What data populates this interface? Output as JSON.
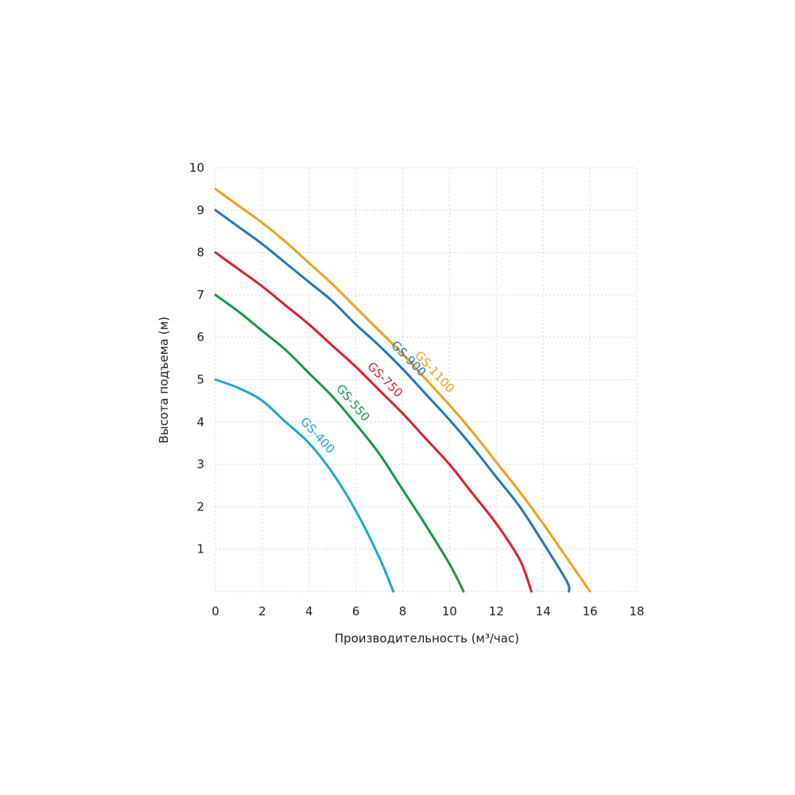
{
  "chart_data": {
    "type": "line",
    "xlabel": "Производительность (м³/час)",
    "ylabel": "Высота подъема (м)",
    "xlim": [
      0,
      18
    ],
    "ylim": [
      0,
      10
    ],
    "x_ticks": [
      "0",
      "2",
      "4",
      "6",
      "8",
      "10",
      "12",
      "14",
      "16",
      "18"
    ],
    "y_ticks": [
      "1",
      "2",
      "3",
      "4",
      "5",
      "6",
      "7",
      "8",
      "9",
      "10"
    ],
    "grid": true,
    "series": [
      {
        "name": "GS-400",
        "color": "#1aa8e0",
        "points": [
          [
            0,
            5.0
          ],
          [
            1,
            4.8
          ],
          [
            2,
            4.5
          ],
          [
            3,
            4.0
          ],
          [
            4,
            3.5
          ],
          [
            5,
            2.8
          ],
          [
            6,
            1.9
          ],
          [
            7,
            0.8
          ],
          [
            7.6,
            0.0
          ]
        ]
      },
      {
        "name": "GS-550",
        "color": "#149a4a",
        "points": [
          [
            0,
            7.0
          ],
          [
            1,
            6.6
          ],
          [
            2,
            6.15
          ],
          [
            3,
            5.7
          ],
          [
            4,
            5.15
          ],
          [
            5,
            4.6
          ],
          [
            6,
            3.95
          ],
          [
            7,
            3.25
          ],
          [
            8,
            2.4
          ],
          [
            9,
            1.55
          ],
          [
            10,
            0.65
          ],
          [
            10.6,
            0.0
          ]
        ]
      },
      {
        "name": "GS-750",
        "color": "#e0202e",
        "points": [
          [
            0,
            8.0
          ],
          [
            1,
            7.6
          ],
          [
            2,
            7.2
          ],
          [
            3,
            6.75
          ],
          [
            4,
            6.3
          ],
          [
            5,
            5.8
          ],
          [
            6,
            5.3
          ],
          [
            7,
            4.75
          ],
          [
            8,
            4.2
          ],
          [
            9,
            3.6
          ],
          [
            10,
            3.0
          ],
          [
            11,
            2.3
          ],
          [
            12,
            1.6
          ],
          [
            13,
            0.75
          ],
          [
            13.5,
            0.0
          ]
        ]
      },
      {
        "name": "GS-900",
        "color": "#1f7abf",
        "points": [
          [
            0,
            9.0
          ],
          [
            1,
            8.6
          ],
          [
            2,
            8.2
          ],
          [
            3,
            7.75
          ],
          [
            4,
            7.3
          ],
          [
            5,
            6.85
          ],
          [
            6,
            6.3
          ],
          [
            7,
            5.8
          ],
          [
            8,
            5.25
          ],
          [
            9,
            4.65
          ],
          [
            10,
            4.05
          ],
          [
            11,
            3.4
          ],
          [
            12,
            2.7
          ],
          [
            13,
            2.0
          ],
          [
            14,
            1.15
          ],
          [
            15,
            0.25
          ],
          [
            15.1,
            0.0
          ]
        ]
      },
      {
        "name": "GS-1100",
        "color": "#f2a01a",
        "points": [
          [
            0,
            9.5
          ],
          [
            1,
            9.1
          ],
          [
            2,
            8.7
          ],
          [
            3,
            8.25
          ],
          [
            4,
            7.75
          ],
          [
            5,
            7.25
          ],
          [
            6,
            6.7
          ],
          [
            7,
            6.15
          ],
          [
            8,
            5.6
          ],
          [
            9,
            5.0
          ],
          [
            10,
            4.4
          ],
          [
            11,
            3.75
          ],
          [
            12,
            3.05
          ],
          [
            13,
            2.35
          ],
          [
            14,
            1.6
          ],
          [
            15,
            0.8
          ],
          [
            16,
            0.0
          ]
        ]
      }
    ]
  }
}
